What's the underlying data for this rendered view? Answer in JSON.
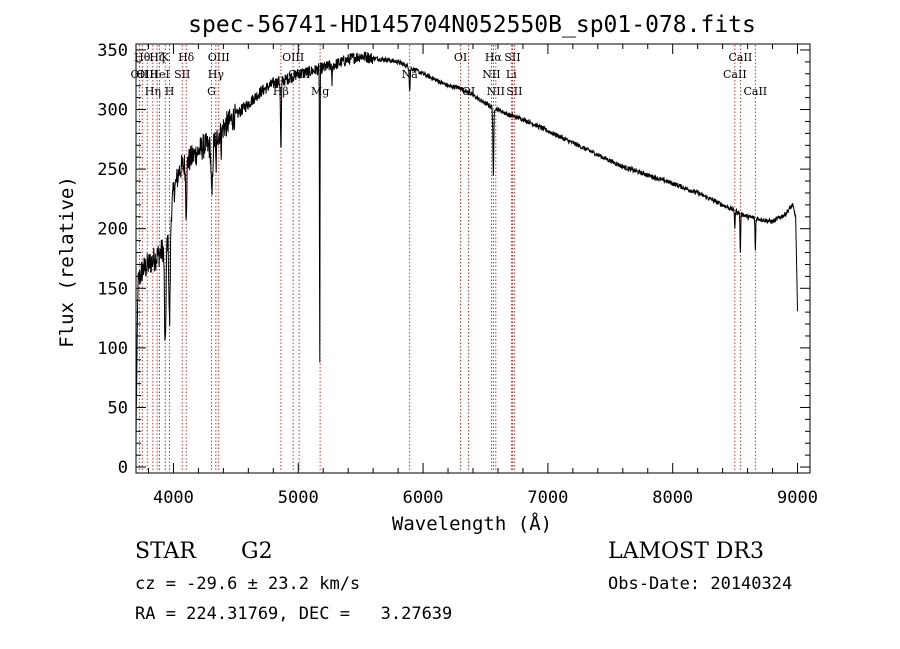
{
  "chart_data": {
    "type": "line",
    "title": "spec-56741-HD145704N052550B_sp01-078.fits",
    "xlabel": "Wavelength (Å)",
    "ylabel": "Flux (relative)",
    "xlim": [
      3700,
      9100
    ],
    "ylim": [
      -5,
      355
    ],
    "xticks": [
      4000,
      5000,
      6000,
      7000,
      8000,
      9000
    ],
    "xtick_labels": [
      "4000",
      "5000",
      "6000",
      "7000",
      "8000",
      "9000"
    ],
    "yticks": [
      0,
      50,
      100,
      150,
      200,
      250,
      300,
      350
    ],
    "ytick_labels": [
      "0",
      "50",
      "100",
      "150",
      "200",
      "250",
      "300",
      "350"
    ],
    "grid": false,
    "continuum": {
      "x": [
        3700,
        3750,
        3800,
        3850,
        3900,
        3950,
        4000,
        4050,
        4100,
        4150,
        4200,
        4250,
        4300,
        4350,
        4400,
        4500,
        4600,
        4700,
        4800,
        4900,
        5000,
        5100,
        5200,
        5300,
        5400,
        5500,
        5600,
        5700,
        5800,
        5900,
        6000,
        6100,
        6200,
        6300,
        6400,
        6500,
        6600,
        6700,
        6800,
        7000,
        7200,
        7400,
        7600,
        7800,
        8000,
        8200,
        8400,
        8500,
        8600,
        8700,
        8800,
        8900,
        8960,
        8985,
        9000
      ],
      "y": [
        150,
        165,
        170,
        175,
        180,
        190,
        230,
        250,
        255,
        260,
        265,
        270,
        268,
        278,
        285,
        295,
        305,
        315,
        322,
        325,
        330,
        332,
        335,
        338,
        342,
        345,
        343,
        342,
        340,
        335,
        330,
        325,
        320,
        318,
        312,
        305,
        300,
        295,
        292,
        282,
        272,
        262,
        252,
        245,
        238,
        230,
        220,
        215,
        210,
        208,
        206,
        212,
        220,
        210,
        130
      ]
    },
    "absorption_lines": [
      {
        "x": 3705,
        "depth": 90,
        "width": 6
      },
      {
        "x": 3934,
        "depth": 90,
        "width": 8
      },
      {
        "x": 3969,
        "depth": 85,
        "width": 8
      },
      {
        "x": 4102,
        "depth": 40,
        "width": 6
      },
      {
        "x": 4308,
        "depth": 45,
        "width": 8
      },
      {
        "x": 4341,
        "depth": 25,
        "width": 5
      },
      {
        "x": 4383,
        "depth": 15,
        "width": 4
      },
      {
        "x": 4861,
        "depth": 60,
        "width": 5
      },
      {
        "x": 5172,
        "depth": 255,
        "width": 3
      },
      {
        "x": 5270,
        "depth": 15,
        "width": 4
      },
      {
        "x": 5893,
        "depth": 20,
        "width": 5
      },
      {
        "x": 6563,
        "depth": 60,
        "width": 5
      },
      {
        "x": 8498,
        "depth": 15,
        "width": 4
      },
      {
        "x": 8542,
        "depth": 35,
        "width": 4
      },
      {
        "x": 8662,
        "depth": 28,
        "width": 4
      }
    ],
    "line_markers": [
      {
        "x": 3727,
        "label": "OII",
        "row": 2
      },
      {
        "x": 3750,
        "label": "Hθ",
        "row": 1
      },
      {
        "x": 3790,
        "label": "OIII",
        "row": 2
      },
      {
        "x": 3835,
        "label": "Hη",
        "row": 3
      },
      {
        "x": 3869,
        "label": "Hζ",
        "row": 1
      },
      {
        "x": 3889,
        "label": "HeI",
        "row": 2
      },
      {
        "x": 3934,
        "label": "K",
        "row": 1
      },
      {
        "x": 3969,
        "label": "H",
        "row": 3
      },
      {
        "x": 4070,
        "label": "SII",
        "row": 2
      },
      {
        "x": 4102,
        "label": "Hδ",
        "row": 1
      },
      {
        "x": 4305,
        "label": "G",
        "row": 3
      },
      {
        "x": 4340,
        "label": "Hγ",
        "row": 2
      },
      {
        "x": 4363,
        "label": "OIII",
        "row": 1
      },
      {
        "x": 4861,
        "label": "Hβ",
        "row": 3
      },
      {
        "x": 4959,
        "label": "OIII",
        "row": 1
      },
      {
        "x": 5007,
        "label": "OIII",
        "row": 2
      },
      {
        "x": 5175,
        "label": "Mg",
        "row": 3
      },
      {
        "x": 5893,
        "label": "Na",
        "row": 2
      },
      {
        "x": 6300,
        "label": "OI",
        "row": 1
      },
      {
        "x": 6364,
        "label": "OI",
        "row": 3
      },
      {
        "x": 6548,
        "label": "NII",
        "row": 2
      },
      {
        "x": 6563,
        "label": "Hα",
        "row": 1
      },
      {
        "x": 6583,
        "label": "NII",
        "row": 3
      },
      {
        "x": 6707,
        "label": "Li",
        "row": 2
      },
      {
        "x": 6716,
        "label": "SII",
        "row": 1
      },
      {
        "x": 6731,
        "label": "SII",
        "row": 3
      },
      {
        "x": 8498,
        "label": "CaII",
        "row": 2
      },
      {
        "x": 8542,
        "label": "CaII",
        "row": 1
      },
      {
        "x": 8662,
        "label": "CaII",
        "row": 3
      }
    ]
  },
  "info": {
    "object_class": "STAR",
    "subclass": "G2",
    "survey": "LAMOST DR3",
    "redshift": "cz = -29.6 ± 23.2 km/s",
    "obs_date": "Obs-Date: 20140324",
    "coords": "RA = 224.31769, DEC =   3.27639"
  }
}
